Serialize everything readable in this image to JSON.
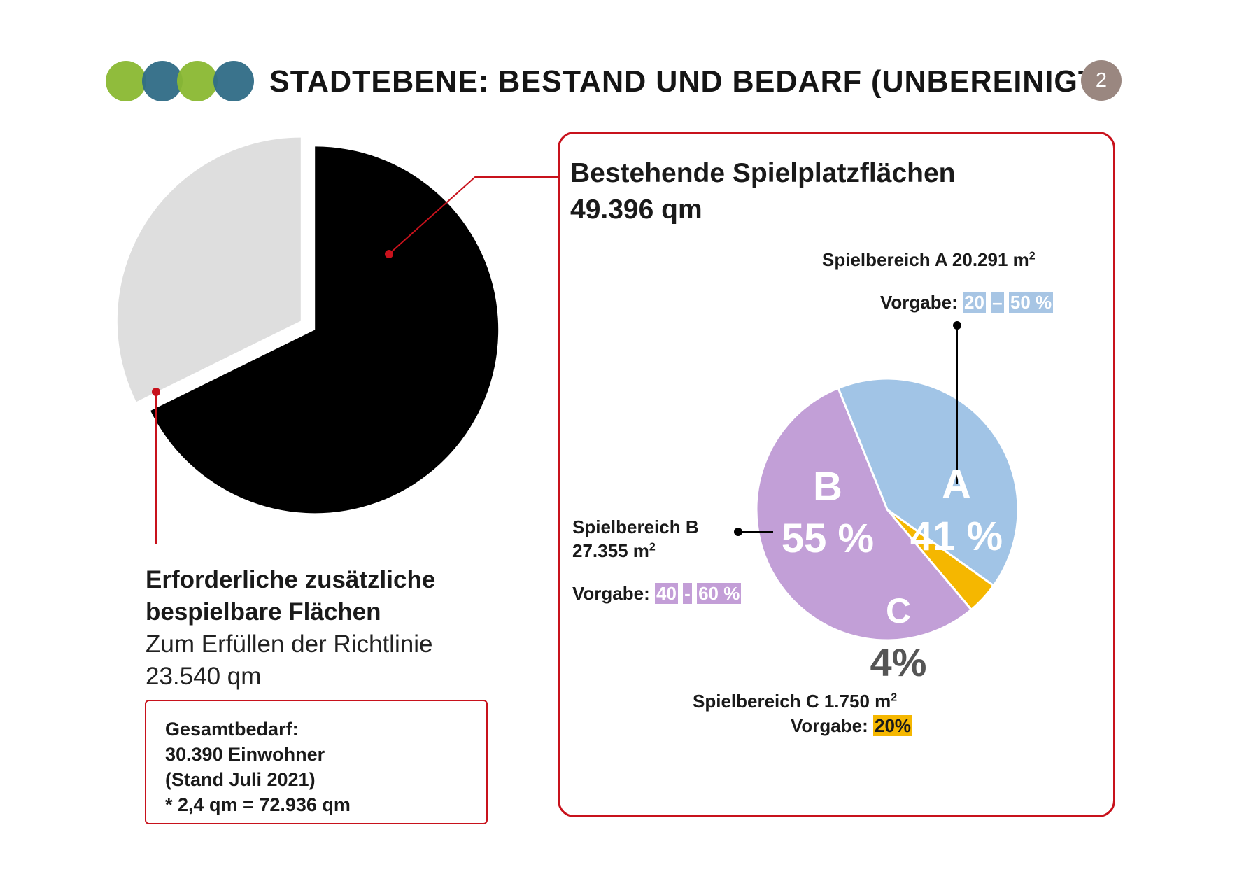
{
  "header": {
    "title": "STADTEBENE: BESTAND UND BEDARF (UNBEREINIGT)",
    "page_number": "2",
    "dot_colors": [
      "#8ab832",
      "#2f6b86",
      "#8ab832",
      "#2f6b86"
    ]
  },
  "needed": {
    "title_line1": "Erforderliche zusätzliche",
    "title_line2": "bespielbare Flächen",
    "sub_line1": "Zum Erfüllen der Richtlinie",
    "sub_line2": "23.540 qm"
  },
  "total": {
    "line1": "Gesamtbedarf:",
    "line2": "30.390 Einwohner",
    "line3": "(Stand Juli 2021)",
    "line4": "* 2,4 qm = 72.936 qm"
  },
  "existing": {
    "title_line1": "Bestehende Spielplatzflächen",
    "title_line2": "49.396 qm"
  },
  "labels": {
    "a_name": "Spielbereich A 20.291 m",
    "a_sup": "2",
    "a_vorgabe": "Vorgabe:",
    "a_range_from": "20",
    "a_range_dash": "–",
    "a_range_to": "50 %",
    "b_name": "Spielbereich B",
    "b_area": "27.355 m",
    "b_sup": "2",
    "b_vorgabe": "Vorgabe:",
    "b_range_from": "40",
    "b_range_dash": "-",
    "b_range_to": "60 %",
    "c_name": "Spielbereich C 1.750 m",
    "c_sup": "2",
    "c_vorgabe": "Vorgabe:",
    "c_range": "20%"
  },
  "colors": {
    "accent_red": "#c8121c",
    "existing": "#000000",
    "needed": "#dedede",
    "a": "#a1c4e6",
    "b": "#c29fd7",
    "c": "#f5b700"
  },
  "chart_data": [
    {
      "type": "pie",
      "title": "",
      "slices": [
        {
          "label": "Bestehende Spielplatzflächen",
          "value": 49396,
          "color": "#000000"
        },
        {
          "label": "Erforderliche zusätzliche bespielbare Flächen",
          "value": 23540,
          "color": "#dedede"
        }
      ]
    },
    {
      "type": "pie",
      "title": "",
      "slices": [
        {
          "label": "A",
          "percent_label": "41 %",
          "value": 41,
          "color": "#a1c4e6"
        },
        {
          "label": "C",
          "percent_label": "4%",
          "value": 4,
          "color": "#f5b700"
        },
        {
          "label": "B",
          "percent_label": "55 %",
          "value": 55,
          "color": "#c29fd7"
        }
      ]
    }
  ]
}
